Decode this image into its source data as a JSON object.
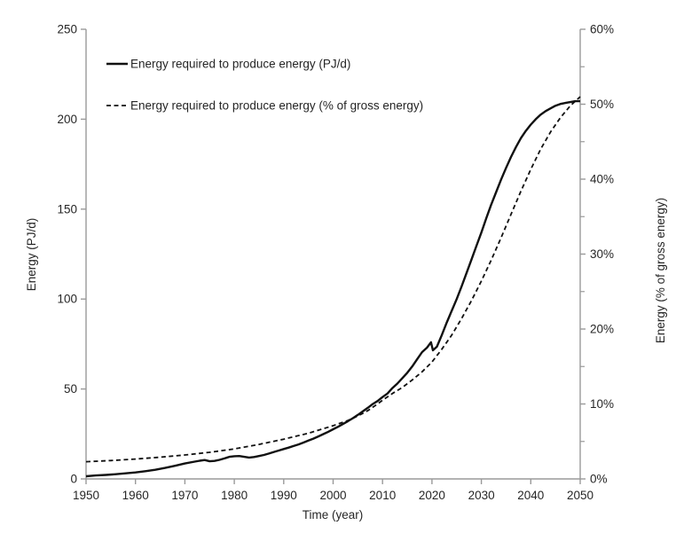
{
  "colors": {
    "background": "#ffffff",
    "axis": "#9a9a9a",
    "text": "#262626",
    "series_line": "#111111"
  },
  "chart_data": {
    "type": "line",
    "title": "",
    "xlabel": "Time (year)",
    "ylabel_left": "Energy (PJ/d)",
    "ylabel_right": "Energy  (% of  gross energy)",
    "grid": "off",
    "legend_position": "top-left-inside",
    "x_range": [
      1950,
      2050
    ],
    "x_ticks": [
      1950,
      1960,
      1970,
      1980,
      1990,
      2000,
      2010,
      2020,
      2030,
      2040,
      2050
    ],
    "y_left": {
      "range": [
        0,
        250
      ],
      "ticks": [
        0,
        50,
        100,
        150,
        200,
        250
      ],
      "tick_labels": [
        "0",
        "50",
        "100",
        "150",
        "200",
        "250"
      ]
    },
    "y_right": {
      "range": [
        0,
        60
      ],
      "major_ticks": [
        0,
        10,
        20,
        30,
        40,
        50,
        60
      ],
      "tick_labels": [
        "0%",
        "10%",
        "20%",
        "30%",
        "40%",
        "50%",
        "60%"
      ],
      "minor_ticks": [
        5,
        15,
        25,
        35,
        45,
        55
      ]
    },
    "series": [
      {
        "name": "Energy required to produce energy (PJ/d)",
        "axis": "left",
        "style": "solid",
        "points": [
          [
            1950,
            1.5
          ],
          [
            1952,
            1.9
          ],
          [
            1954,
            2.2
          ],
          [
            1956,
            2.6
          ],
          [
            1958,
            3.1
          ],
          [
            1960,
            3.6
          ],
          [
            1962,
            4.3
          ],
          [
            1964,
            5.1
          ],
          [
            1966,
            6.1
          ],
          [
            1968,
            7.3
          ],
          [
            1970,
            8.6
          ],
          [
            1972,
            9.6
          ],
          [
            1973,
            10.1
          ],
          [
            1974,
            10.5
          ],
          [
            1975,
            9.8
          ],
          [
            1976,
            10.0
          ],
          [
            1977,
            10.6
          ],
          [
            1978,
            11.4
          ],
          [
            1979,
            12.3
          ],
          [
            1980,
            12.6
          ],
          [
            1981,
            12.7
          ],
          [
            1982,
            12.3
          ],
          [
            1983,
            11.9
          ],
          [
            1984,
            12.2
          ],
          [
            1985,
            12.7
          ],
          [
            1986,
            13.3
          ],
          [
            1987,
            14.1
          ],
          [
            1988,
            15.0
          ],
          [
            1989,
            15.8
          ],
          [
            1990,
            16.6
          ],
          [
            1991,
            17.4
          ],
          [
            1992,
            18.3
          ],
          [
            1993,
            19.2
          ],
          [
            1994,
            20.2
          ],
          [
            1995,
            21.3
          ],
          [
            1996,
            22.4
          ],
          [
            1997,
            23.6
          ],
          [
            1998,
            24.9
          ],
          [
            1999,
            26.2
          ],
          [
            2000,
            27.6
          ],
          [
            2001,
            29.0
          ],
          [
            2002,
            30.5
          ],
          [
            2003,
            32.1
          ],
          [
            2004,
            33.8
          ],
          [
            2005,
            35.6
          ],
          [
            2006,
            37.5
          ],
          [
            2007,
            39.5
          ],
          [
            2008,
            41.6
          ],
          [
            2009,
            43.3
          ],
          [
            2010,
            45.5
          ],
          [
            2011,
            47.5
          ],
          [
            2012,
            50.5
          ],
          [
            2013,
            53.0
          ],
          [
            2014,
            56.0
          ],
          [
            2015,
            59.0
          ],
          [
            2016,
            62.5
          ],
          [
            2017,
            66.5
          ],
          [
            2018,
            70.5
          ],
          [
            2019,
            73.0
          ],
          [
            2019.8,
            76.0
          ],
          [
            2020.2,
            71.5
          ],
          [
            2021,
            73.5
          ],
          [
            2022,
            80.0
          ],
          [
            2023,
            87.0
          ],
          [
            2024,
            93.5
          ],
          [
            2025,
            100.0
          ],
          [
            2026,
            107.0
          ],
          [
            2027,
            114.5
          ],
          [
            2028,
            122.0
          ],
          [
            2029,
            129.5
          ],
          [
            2030,
            137.0
          ],
          [
            2031,
            145.0
          ],
          [
            2032,
            152.5
          ],
          [
            2033,
            159.5
          ],
          [
            2034,
            166.5
          ],
          [
            2035,
            173.0
          ],
          [
            2036,
            179.0
          ],
          [
            2037,
            184.5
          ],
          [
            2038,
            189.5
          ],
          [
            2039,
            193.5
          ],
          [
            2040,
            197.0
          ],
          [
            2041,
            200.0
          ],
          [
            2042,
            202.5
          ],
          [
            2043,
            204.5
          ],
          [
            2044,
            206.0
          ],
          [
            2045,
            207.5
          ],
          [
            2046,
            208.5
          ],
          [
            2047,
            209.0
          ],
          [
            2048,
            209.5
          ],
          [
            2049,
            210.0
          ],
          [
            2050,
            210.0
          ]
        ]
      },
      {
        "name": "Energy required to produce energy (% of gross energy)",
        "axis": "right",
        "style": "dashed",
        "points": [
          [
            1950,
            2.3
          ],
          [
            1955,
            2.45
          ],
          [
            1960,
            2.65
          ],
          [
            1965,
            2.9
          ],
          [
            1970,
            3.2
          ],
          [
            1975,
            3.55
          ],
          [
            1980,
            4.0
          ],
          [
            1985,
            4.6
          ],
          [
            1990,
            5.3
          ],
          [
            1995,
            6.1
          ],
          [
            2000,
            7.1
          ],
          [
            2003,
            7.8
          ],
          [
            2005,
            8.4
          ],
          [
            2007,
            9.1
          ],
          [
            2009,
            10.0
          ],
          [
            2010,
            10.5
          ],
          [
            2012,
            11.4
          ],
          [
            2014,
            12.2
          ],
          [
            2016,
            13.2
          ],
          [
            2018,
            14.3
          ],
          [
            2020,
            15.6
          ],
          [
            2022,
            17.3
          ],
          [
            2024,
            19.2
          ],
          [
            2026,
            21.4
          ],
          [
            2028,
            23.8
          ],
          [
            2030,
            26.4
          ],
          [
            2032,
            29.2
          ],
          [
            2034,
            32.2
          ],
          [
            2036,
            35.3
          ],
          [
            2038,
            38.4
          ],
          [
            2040,
            41.3
          ],
          [
            2042,
            44.0
          ],
          [
            2044,
            46.3
          ],
          [
            2046,
            48.2
          ],
          [
            2048,
            49.8
          ],
          [
            2050,
            51.0
          ]
        ]
      }
    ]
  }
}
